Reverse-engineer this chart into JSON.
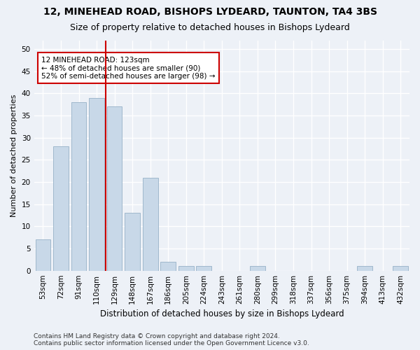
{
  "title1": "12, MINEHEAD ROAD, BISHOPS LYDEARD, TAUNTON, TA4 3BS",
  "title2": "Size of property relative to detached houses in Bishops Lydeard",
  "xlabel": "Distribution of detached houses by size in Bishops Lydeard",
  "ylabel": "Number of detached properties",
  "categories": [
    "53sqm",
    "72sqm",
    "91sqm",
    "110sqm",
    "129sqm",
    "148sqm",
    "167sqm",
    "186sqm",
    "205sqm",
    "224sqm",
    "243sqm",
    "261sqm",
    "280sqm",
    "299sqm",
    "318sqm",
    "337sqm",
    "356sqm",
    "375sqm",
    "394sqm",
    "413sqm",
    "432sqm"
  ],
  "values": [
    7,
    28,
    38,
    39,
    37,
    13,
    21,
    2,
    1,
    1,
    0,
    0,
    1,
    0,
    0,
    0,
    0,
    0,
    1,
    0,
    1
  ],
  "bar_color": "#c8d8e8",
  "bar_edge_color": "#a0b8cc",
  "vline_x_index": 3.5,
  "vline_color": "#cc0000",
  "annotation_text": "12 MINEHEAD ROAD: 123sqm\n← 48% of detached houses are smaller (90)\n52% of semi-detached houses are larger (98) →",
  "annotation_box_color": "#ffffff",
  "annotation_box_edge": "#cc0000",
  "ylim": [
    0,
    52
  ],
  "yticks": [
    0,
    5,
    10,
    15,
    20,
    25,
    30,
    35,
    40,
    45,
    50
  ],
  "bg_color": "#edf1f7",
  "grid_color": "#ffffff",
  "footer": "Contains HM Land Registry data © Crown copyright and database right 2024.\nContains public sector information licensed under the Open Government Licence v3.0.",
  "title1_fontsize": 10,
  "title2_fontsize": 9,
  "xlabel_fontsize": 8.5,
  "ylabel_fontsize": 8,
  "tick_fontsize": 7.5,
  "annotation_fontsize": 7.5,
  "footer_fontsize": 6.5
}
